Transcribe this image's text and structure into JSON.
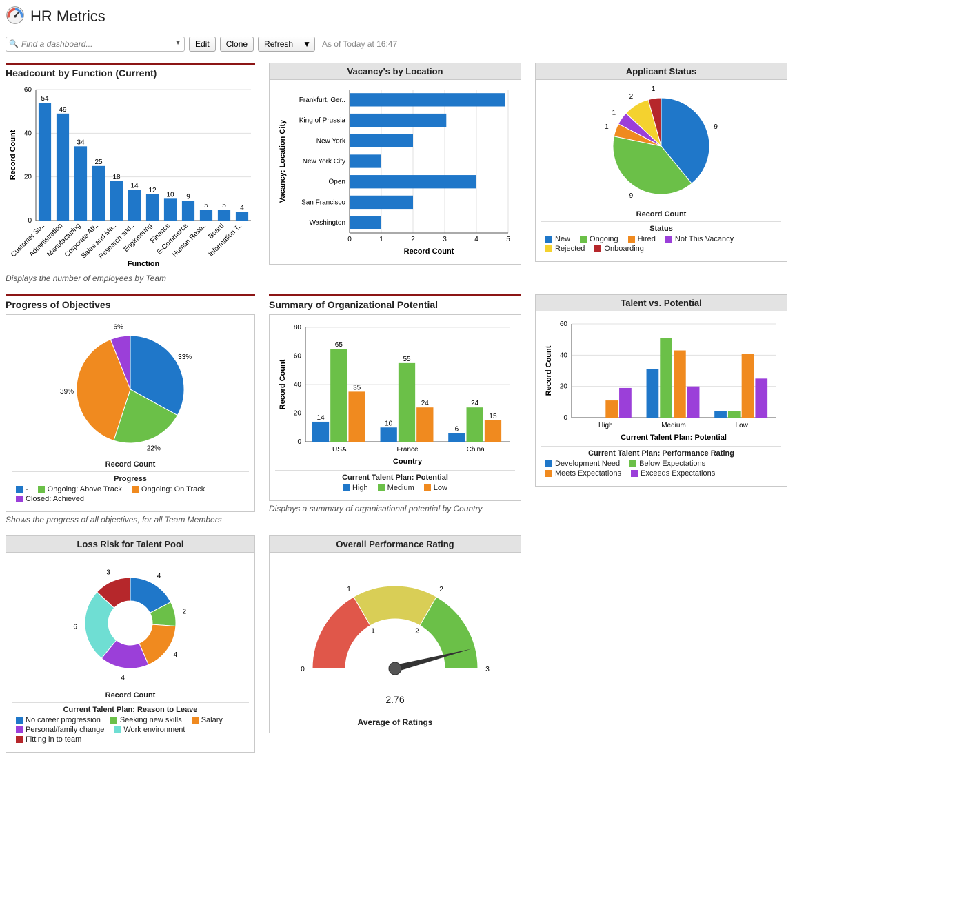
{
  "page": {
    "title": "HR Metrics",
    "search_placeholder": "Find a dashboard...",
    "buttons": {
      "edit": "Edit",
      "clone": "Clone",
      "refresh": "Refresh"
    },
    "timestamp": "As of Today at 16:47"
  },
  "colors": {
    "blue": "#1f77c9",
    "green": "#6bc048",
    "orange": "#f08a1f",
    "purple": "#9b3fd9",
    "darkred": "#b6272b",
    "yellow": "#f4d22f",
    "teal": "#6fded3",
    "grid": "#e0e0e0",
    "axis": "#555555"
  },
  "headcount": {
    "title": "Headcount by Function (Current)",
    "footnote": "Displays the number of employees by Team",
    "type": "bar",
    "y_label": "Record Count",
    "x_label": "Function",
    "y_max": 60,
    "y_step": 20,
    "categories": [
      "Customer Su..",
      "Administration",
      "Manufacturing",
      "Corporate Aff..",
      "Sales and Ma..",
      "Research and..",
      "Engineering",
      "Finance",
      "E-Commerce",
      "Human Reso..",
      "Board",
      "Information T.."
    ],
    "values": [
      54,
      49,
      34,
      25,
      18,
      14,
      12,
      10,
      9,
      5,
      5,
      4
    ],
    "bar_color": "#1f77c9"
  },
  "vacancy": {
    "title": "Vacancy's by Location",
    "type": "bar-h",
    "x_label": "Record Count",
    "y_label": "Vacancy: Location City",
    "x_max": 5,
    "x_step": 1,
    "categories": [
      "Frankfurt, Ger..",
      "King of Prussia",
      "New York",
      "New York City",
      "Open",
      "San Francisco",
      "Washington"
    ],
    "values": [
      4.9,
      3.05,
      2.0,
      1.0,
      4.0,
      2.0,
      1.0
    ],
    "bar_color": "#1f77c9"
  },
  "applicant": {
    "title": "Applicant Status",
    "type": "pie",
    "axis_label": "Record Count",
    "legend_title": "Status",
    "slices": [
      {
        "label": "New",
        "value": 9,
        "color": "#1f77c9"
      },
      {
        "label": "Ongoing",
        "value": 9,
        "color": "#6bc048"
      },
      {
        "label": "Hired",
        "value": 1,
        "color": "#f08a1f"
      },
      {
        "label": "Not This Vacancy",
        "value": 1,
        "color": "#9b3fd9"
      },
      {
        "label": "Rejected",
        "value": 2,
        "color": "#f4d22f"
      },
      {
        "label": "Onboarding",
        "value": 1,
        "color": "#b6272b"
      }
    ]
  },
  "progress": {
    "title": "Progress of Objectives",
    "footnote": "Shows the progress of all objectives, for all Team Members",
    "axis_label": "Record Count",
    "legend_title": "Progress",
    "slices": [
      {
        "label": "-",
        "value": 33,
        "text": "33%",
        "color": "#1f77c9"
      },
      {
        "label": "Ongoing: Above Track",
        "value": 22,
        "text": "22%",
        "color": "#6bc048"
      },
      {
        "label": "Ongoing: On Track",
        "value": 39,
        "text": "39%",
        "color": "#f08a1f"
      },
      {
        "label": "Closed: Achieved",
        "value": 6,
        "text": "6%",
        "color": "#9b3fd9"
      }
    ]
  },
  "orgpotential": {
    "title": "Summary of Organizational Potential",
    "footnote": "Displays a summary of organisational potential by Country",
    "y_label": "Record Count",
    "x_label": "Country",
    "y_max": 80,
    "y_step": 20,
    "legend_title": "Current Talent Plan: Potential",
    "categories": [
      "USA",
      "France",
      "China"
    ],
    "series": [
      {
        "label": "High",
        "color": "#1f77c9",
        "values": [
          14,
          10,
          6
        ]
      },
      {
        "label": "Medium",
        "color": "#6bc048",
        "values": [
          65,
          55,
          24
        ]
      },
      {
        "label": "Low",
        "color": "#f08a1f",
        "values": [
          35,
          24,
          15
        ]
      }
    ]
  },
  "talentpotential": {
    "title": "Talent vs. Potential",
    "y_label": "Record Count",
    "x_label": "Current Talent Plan: Potential",
    "y_max": 60,
    "y_step": 20,
    "legend_title": "Current Talent Plan: Performance Rating",
    "categories": [
      "High",
      "Medium",
      "Low"
    ],
    "series": [
      {
        "label": "Development Need",
        "color": "#1f77c9",
        "values": [
          0,
          31,
          4
        ]
      },
      {
        "label": "Below Expectations",
        "color": "#6bc048",
        "values": [
          0,
          51,
          4
        ]
      },
      {
        "label": "Meets Expectations",
        "color": "#f08a1f",
        "values": [
          11,
          43,
          41
        ]
      },
      {
        "label": "Exceeds Expectations",
        "color": "#9b3fd9",
        "values": [
          19,
          20,
          25
        ]
      }
    ]
  },
  "lossrisk": {
    "title": "Loss Risk for Talent Pool",
    "axis_label": "Record Count",
    "legend_title": "Current Talent Plan: Reason to Leave",
    "slices": [
      {
        "label": "No career progression",
        "value": 4,
        "color": "#1f77c9"
      },
      {
        "label": "Seeking new skills",
        "value": 2,
        "color": "#6bc048"
      },
      {
        "label": "Salary",
        "value": 4,
        "color": "#f08a1f"
      },
      {
        "label": "Personal/family change",
        "value": 4,
        "color": "#9b3fd9"
      },
      {
        "label": "Work environment",
        "value": 6,
        "color": "#6fded3"
      },
      {
        "label": "Fitting in to team",
        "value": 3,
        "color": "#b6272b"
      }
    ]
  },
  "gauge": {
    "title": "Overall Performance Rating",
    "value": 2.76,
    "value_text": "2.76",
    "sub_label": "Average of Ratings",
    "min": 0,
    "max": 3,
    "zones": [
      {
        "from": 0,
        "to": 1,
        "color": "#e0574a"
      },
      {
        "from": 1,
        "to": 2,
        "color": "#d9ce56"
      },
      {
        "from": 2,
        "to": 3,
        "color": "#6bc048"
      }
    ],
    "ticks": [
      0,
      1,
      2,
      3
    ]
  }
}
